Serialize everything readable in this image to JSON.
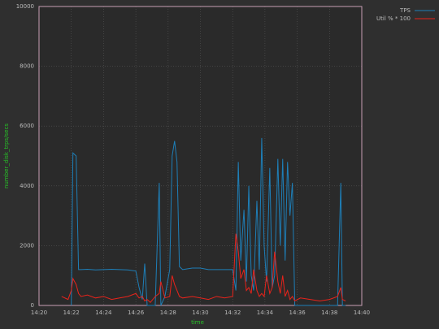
{
  "chart_data": {
    "type": "line",
    "ylabel": "number_disk_trps/secs",
    "xlabel": "time",
    "x": [
      860.2,
      860.6,
      861.0,
      861.4,
      861.8,
      862.0,
      862.1,
      862.3,
      862.45,
      862.6,
      863.0,
      863.5,
      864.0,
      864.5,
      865.0,
      865.5,
      866.0,
      866.2,
      866.4,
      866.55,
      866.7,
      866.9,
      867.2,
      867.45,
      867.55,
      867.8,
      868.1,
      868.25,
      868.4,
      868.55,
      868.7,
      868.9,
      869.5,
      870.0,
      870.5,
      871.0,
      871.5,
      872.0,
      872.2,
      872.35,
      872.5,
      872.7,
      872.85,
      873.0,
      873.15,
      873.3,
      873.5,
      873.65,
      873.8,
      873.95,
      874.1,
      874.3,
      874.45,
      874.6,
      874.8,
      874.95,
      875.1,
      875.25,
      875.4,
      875.55,
      875.7,
      875.85,
      876.2,
      876.8,
      877.4,
      878.0,
      878.5,
      878.7,
      878.8,
      879.0,
      879.4
    ],
    "series": [
      {
        "name": "TPS",
        "color": "#1e7fb8",
        "values": [
          null,
          null,
          null,
          null,
          null,
          0,
          5100,
          5000,
          1200,
          1200,
          1210,
          1190,
          1200,
          1210,
          1200,
          1190,
          1150,
          600,
          200,
          1400,
          0,
          0,
          0,
          4100,
          0,
          300,
          1200,
          5000,
          5500,
          4800,
          1300,
          1200,
          1250,
          1250,
          1200,
          1200,
          1200,
          1200,
          500,
          4800,
          1500,
          3200,
          800,
          4000,
          1000,
          500,
          3500,
          1200,
          5600,
          2000,
          800,
          4600,
          600,
          1000,
          4900,
          2000,
          4900,
          1500,
          4800,
          3000,
          4100,
          0,
          0,
          0,
          0,
          0,
          0,
          4100,
          0,
          0,
          null
        ]
      },
      {
        "name": "Util % * 100",
        "color": "#e8231b",
        "values": [
          null,
          null,
          null,
          300,
          200,
          500,
          900,
          700,
          400,
          300,
          350,
          250,
          300,
          200,
          250,
          300,
          400,
          250,
          300,
          150,
          200,
          100,
          300,
          400,
          800,
          250,
          300,
          1000,
          700,
          500,
          300,
          250,
          300,
          250,
          200,
          300,
          250,
          300,
          2400,
          1800,
          900,
          1200,
          500,
          600,
          400,
          1200,
          500,
          300,
          400,
          300,
          1000,
          400,
          600,
          1800,
          800,
          400,
          1000,
          300,
          500,
          200,
          300,
          150,
          250,
          200,
          150,
          200,
          300,
          600,
          200,
          150,
          null
        ]
      }
    ],
    "xlim": [
      860,
      880
    ],
    "xticks": [
      {
        "value": 860,
        "label": "14:20"
      },
      {
        "value": 862,
        "label": "14:22"
      },
      {
        "value": 864,
        "label": "14:24"
      },
      {
        "value": 866,
        "label": "14:26"
      },
      {
        "value": 868,
        "label": "14:28"
      },
      {
        "value": 870,
        "label": "14:30"
      },
      {
        "value": 872,
        "label": "14:32"
      },
      {
        "value": 874,
        "label": "14:34"
      },
      {
        "value": 876,
        "label": "14:36"
      },
      {
        "value": 878,
        "label": "14:38"
      },
      {
        "value": 880,
        "label": "14:40"
      }
    ],
    "ylim": [
      0,
      10000
    ],
    "yticks": [
      0,
      2000,
      4000,
      6000,
      8000,
      10000
    ],
    "grid": true
  }
}
